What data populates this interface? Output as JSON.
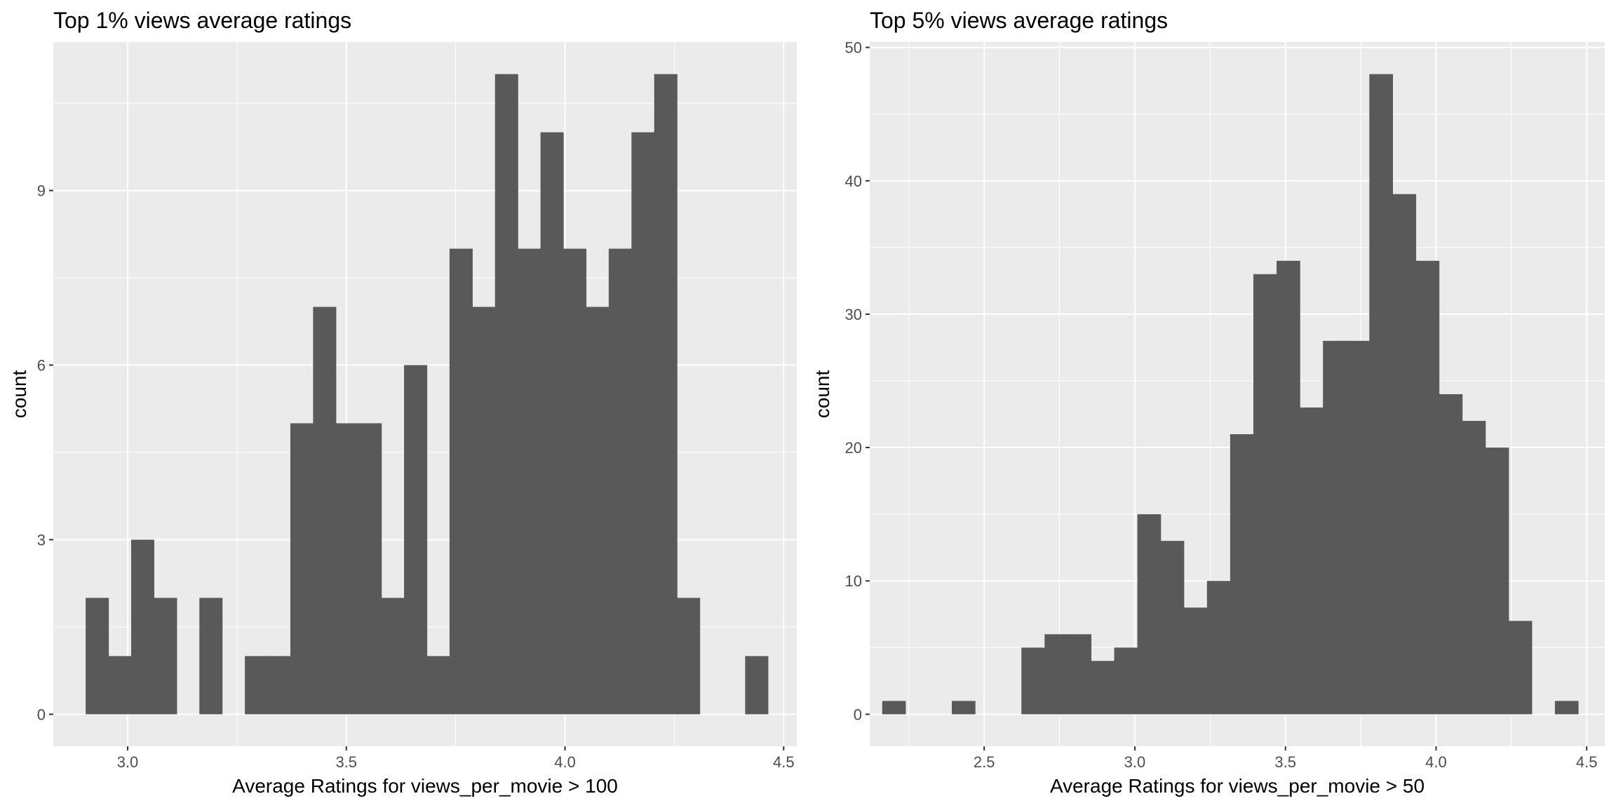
{
  "chart_data": [
    {
      "type": "bar",
      "title": "Top 1% views average ratings",
      "xlabel": "Average Ratings for views_per_movie > 100",
      "ylabel": "count",
      "xlim": [
        2.83,
        4.53
      ],
      "ylim": [
        -0.55,
        11.55
      ],
      "x_ticks": [
        3.0,
        3.5,
        4.0,
        4.5
      ],
      "x_tick_labels": [
        "3.0",
        "3.5",
        "4.0",
        "4.5"
      ],
      "y_ticks": [
        0,
        3,
        6,
        9
      ],
      "y_tick_labels": [
        "0",
        "3",
        "6",
        "9"
      ],
      "grid": true,
      "fill": "#595959",
      "panel_background": "#ebebeb",
      "bins": [
        {
          "x": 2.93,
          "count": 2
        },
        {
          "x": 2.982,
          "count": 1
        },
        {
          "x": 3.034,
          "count": 3
        },
        {
          "x": 3.086,
          "count": 2
        },
        {
          "x": 3.138,
          "count": 0
        },
        {
          "x": 3.19,
          "count": 2
        },
        {
          "x": 3.242,
          "count": 0
        },
        {
          "x": 3.294,
          "count": 1
        },
        {
          "x": 3.346,
          "count": 1
        },
        {
          "x": 3.398,
          "count": 5
        },
        {
          "x": 3.45,
          "count": 7
        },
        {
          "x": 3.502,
          "count": 5
        },
        {
          "x": 3.554,
          "count": 5
        },
        {
          "x": 3.606,
          "count": 2
        },
        {
          "x": 3.658,
          "count": 6
        },
        {
          "x": 3.71,
          "count": 1
        },
        {
          "x": 3.762,
          "count": 8
        },
        {
          "x": 3.814,
          "count": 7
        },
        {
          "x": 3.866,
          "count": 11
        },
        {
          "x": 3.918,
          "count": 8
        },
        {
          "x": 3.97,
          "count": 10
        },
        {
          "x": 4.022,
          "count": 8
        },
        {
          "x": 4.074,
          "count": 7
        },
        {
          "x": 4.126,
          "count": 8
        },
        {
          "x": 4.178,
          "count": 10
        },
        {
          "x": 4.23,
          "count": 11
        },
        {
          "x": 4.282,
          "count": 2
        },
        {
          "x": 4.334,
          "count": 0
        },
        {
          "x": 4.386,
          "count": 0
        },
        {
          "x": 4.438,
          "count": 1
        }
      ]
    },
    {
      "type": "bar",
      "title": "Top 5% views average ratings",
      "xlabel": "Average Ratings for views_per_movie > 50",
      "ylabel": "count",
      "xlim": [
        2.12,
        4.56
      ],
      "ylim": [
        -2.4,
        50.4
      ],
      "x_ticks": [
        2.5,
        3.0,
        3.5,
        4.0,
        4.5
      ],
      "x_tick_labels": [
        "2.5",
        "3.0",
        "3.5",
        "4.0",
        "4.5"
      ],
      "y_ticks": [
        0,
        10,
        20,
        30,
        40,
        50
      ],
      "y_tick_labels": [
        "0",
        "10",
        "20",
        "30",
        "40",
        "50"
      ],
      "grid": true,
      "fill": "#595959",
      "panel_background": "#ebebeb",
      "bins": [
        {
          "x": 2.2,
          "count": 1
        },
        {
          "x": 2.277,
          "count": 0
        },
        {
          "x": 2.354,
          "count": 0
        },
        {
          "x": 2.431,
          "count": 1
        },
        {
          "x": 2.508,
          "count": 0
        },
        {
          "x": 2.585,
          "count": 0
        },
        {
          "x": 2.662,
          "count": 5
        },
        {
          "x": 2.739,
          "count": 6
        },
        {
          "x": 2.816,
          "count": 6
        },
        {
          "x": 2.893,
          "count": 4
        },
        {
          "x": 2.97,
          "count": 5
        },
        {
          "x": 3.047,
          "count": 15
        },
        {
          "x": 3.124,
          "count": 13
        },
        {
          "x": 3.201,
          "count": 8
        },
        {
          "x": 3.278,
          "count": 10
        },
        {
          "x": 3.355,
          "count": 21
        },
        {
          "x": 3.432,
          "count": 33
        },
        {
          "x": 3.509,
          "count": 34
        },
        {
          "x": 3.586,
          "count": 23
        },
        {
          "x": 3.663,
          "count": 28
        },
        {
          "x": 3.74,
          "count": 28
        },
        {
          "x": 3.817,
          "count": 48
        },
        {
          "x": 3.894,
          "count": 39
        },
        {
          "x": 3.971,
          "count": 34
        },
        {
          "x": 4.048,
          "count": 24
        },
        {
          "x": 4.125,
          "count": 22
        },
        {
          "x": 4.202,
          "count": 20
        },
        {
          "x": 4.279,
          "count": 7
        },
        {
          "x": 4.356,
          "count": 0
        },
        {
          "x": 4.433,
          "count": 1
        }
      ]
    }
  ]
}
